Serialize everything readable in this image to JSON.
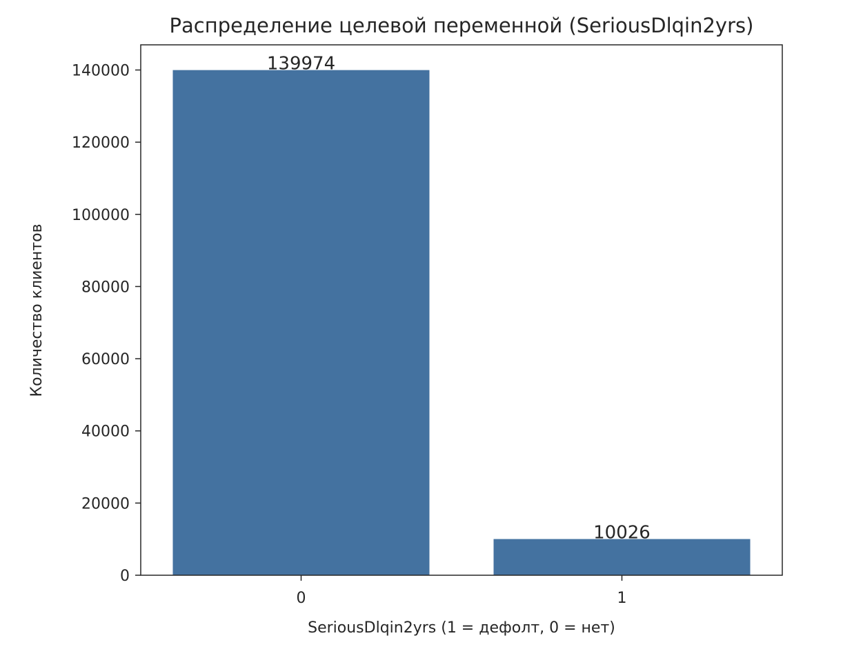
{
  "chart_data": {
    "type": "bar",
    "title": "Распределение целевой переменной (SeriousDlqin2yrs)",
    "xlabel": "SeriousDlqin2yrs (1 = дефолт, 0 = нет)",
    "ylabel": "Количество клиентов",
    "categories": [
      "0",
      "1"
    ],
    "values": [
      139974,
      10026
    ],
    "data_labels": [
      "139974",
      "10026"
    ],
    "ylim": [
      0,
      146972
    ],
    "yticks": [
      0,
      20000,
      40000,
      60000,
      80000,
      100000,
      120000,
      140000
    ],
    "ytick_labels": [
      "0",
      "20000",
      "40000",
      "60000",
      "80000",
      "100000",
      "120000",
      "140000"
    ],
    "bar_color": "#4472a0",
    "grid": false,
    "legend": "none"
  }
}
